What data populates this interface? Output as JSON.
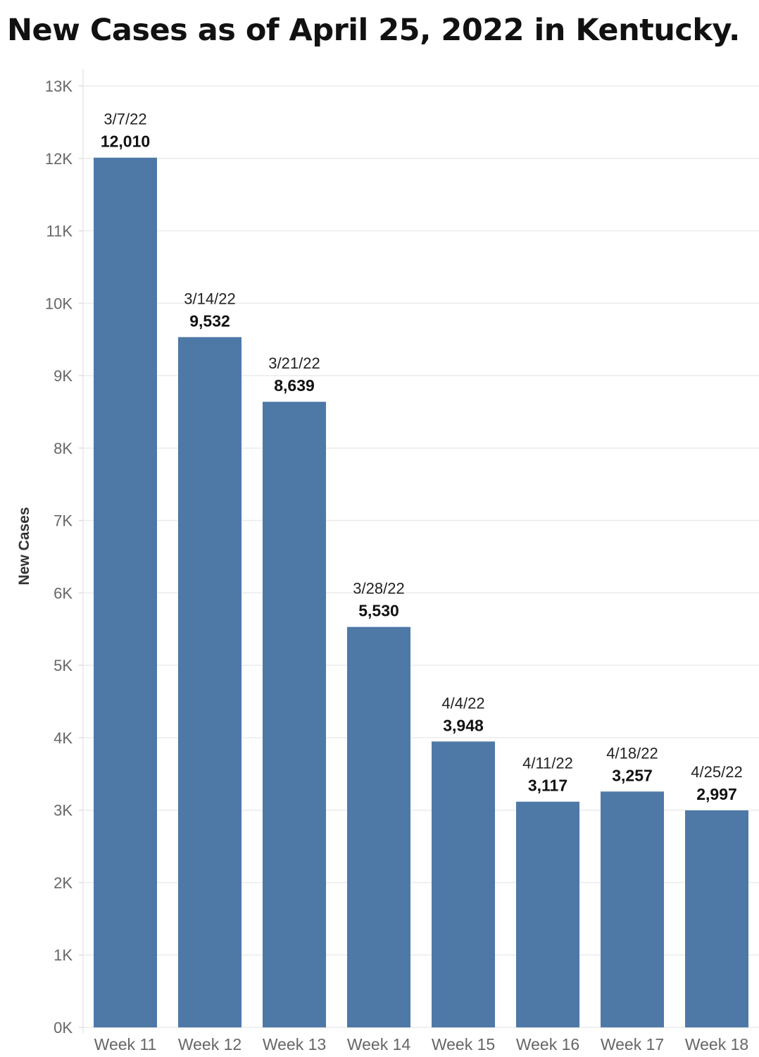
{
  "title": "New Cases as of April 25, 2022 in Kentucky.",
  "chart_data": {
    "type": "bar",
    "ylabel": "New Cases",
    "xlabel": "",
    "ylim": [
      0,
      13000
    ],
    "yticks": [
      0,
      1000,
      2000,
      3000,
      4000,
      5000,
      6000,
      7000,
      8000,
      9000,
      10000,
      11000,
      12000,
      13000
    ],
    "ytick_labels": [
      "0K",
      "1K",
      "2K",
      "3K",
      "4K",
      "5K",
      "6K",
      "7K",
      "8K",
      "9K",
      "10K",
      "11K",
      "12K",
      "13K"
    ],
    "categories": [
      "Week 11",
      "Week 12",
      "Week 13",
      "Week 14",
      "Week 15",
      "Week 16",
      "Week 17",
      "Week 18"
    ],
    "dates": [
      "3/7/22",
      "3/14/22",
      "3/21/22",
      "3/28/22",
      "4/4/22",
      "4/11/22",
      "4/18/22",
      "4/25/22"
    ],
    "values": [
      12010,
      9532,
      8639,
      5530,
      3948,
      3117,
      3257,
      2997
    ],
    "value_labels": [
      "12,010",
      "9,532",
      "8,639",
      "5,530",
      "3,948",
      "3,117",
      "3,257",
      "2,997"
    ],
    "bar_color": "#4e79a7",
    "grid": true,
    "grid_color": "#ebebeb"
  }
}
